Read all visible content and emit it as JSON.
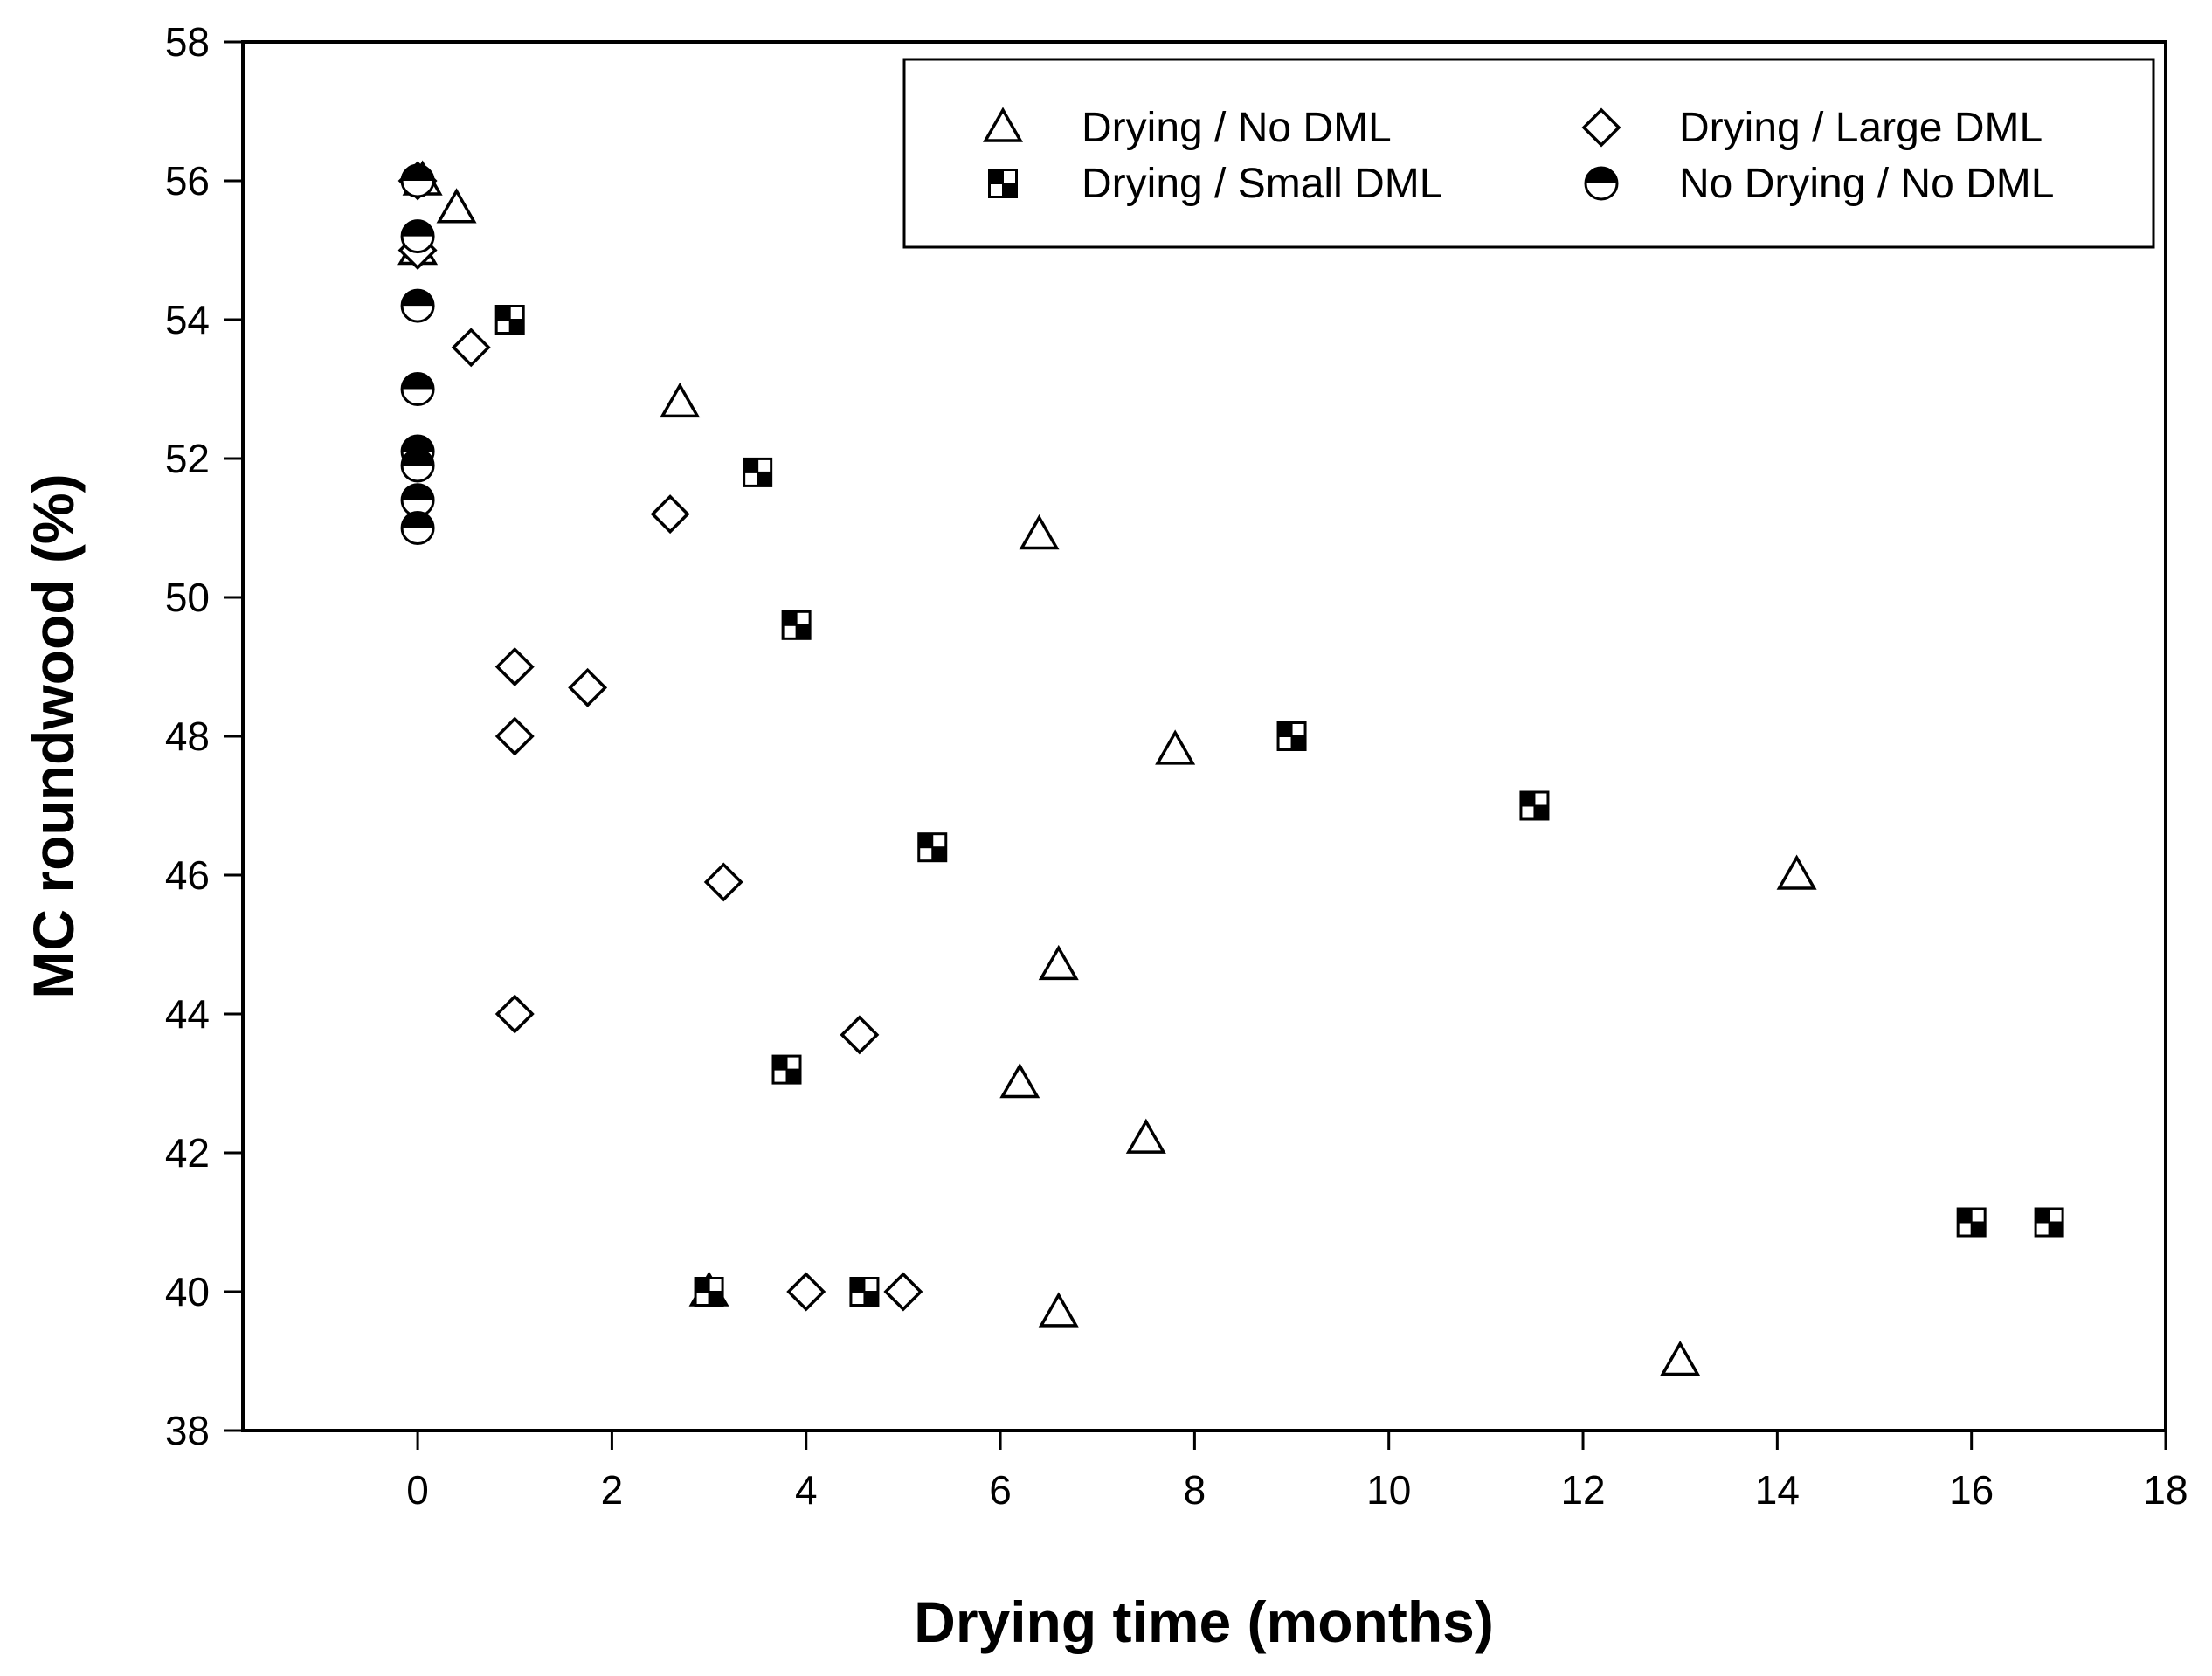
{
  "chart_data": {
    "type": "scatter",
    "title": "",
    "xlabel": "Drying time (months)",
    "ylabel": "MC roundwood (%)",
    "xlim": [
      -1.8,
      18
    ],
    "ylim": [
      38,
      58
    ],
    "xticks": [
      0,
      2,
      4,
      6,
      8,
      10,
      12,
      14,
      16,
      18
    ],
    "yticks": [
      38,
      40,
      42,
      44,
      46,
      48,
      50,
      52,
      54,
      56,
      58
    ],
    "grid": false,
    "legend_position": "top-right",
    "series": [
      {
        "name": "Drying / No DML",
        "marker": "triangle",
        "points": [
          [
            0.05,
            56.0
          ],
          [
            0.0,
            55.0
          ],
          [
            0.4,
            55.6
          ],
          [
            2.7,
            52.8
          ],
          [
            6.4,
            50.9
          ],
          [
            7.8,
            47.8
          ],
          [
            6.6,
            44.7
          ],
          [
            6.2,
            43.0
          ],
          [
            7.5,
            42.2
          ],
          [
            3.0,
            40.0
          ],
          [
            6.6,
            39.7
          ],
          [
            13.0,
            39.0
          ],
          [
            14.2,
            46.0
          ]
        ]
      },
      {
        "name": "Drying / Small DML",
        "marker": "checker-square",
        "points": [
          [
            0.95,
            54.0
          ],
          [
            3.5,
            51.8
          ],
          [
            3.9,
            49.6
          ],
          [
            9.0,
            48.0
          ],
          [
            11.5,
            47.0
          ],
          [
            5.3,
            46.4
          ],
          [
            3.8,
            43.2
          ],
          [
            3.0,
            40.0
          ],
          [
            4.6,
            40.0
          ],
          [
            16.0,
            41.0
          ],
          [
            16.8,
            41.0
          ]
        ]
      },
      {
        "name": "Drying / Large DML",
        "marker": "diamond",
        "points": [
          [
            0.0,
            56.0
          ],
          [
            0.0,
            55.0
          ],
          [
            0.55,
            53.6
          ],
          [
            2.6,
            51.2
          ],
          [
            1.0,
            49.0
          ],
          [
            1.75,
            48.7
          ],
          [
            1.0,
            48.0
          ],
          [
            3.15,
            45.9
          ],
          [
            4.55,
            43.7
          ],
          [
            1.0,
            44.0
          ],
          [
            4.0,
            40.0
          ],
          [
            5.0,
            40.0
          ]
        ]
      },
      {
        "name": "No Drying / No DML",
        "marker": "half-filled-circle",
        "points": [
          [
            0.0,
            56.0
          ],
          [
            0.0,
            55.2
          ],
          [
            0.0,
            54.2
          ],
          [
            0.0,
            53.0
          ],
          [
            0.0,
            52.1
          ],
          [
            0.0,
            51.9
          ],
          [
            0.0,
            51.4
          ],
          [
            0.0,
            51.0
          ]
        ]
      }
    ]
  }
}
